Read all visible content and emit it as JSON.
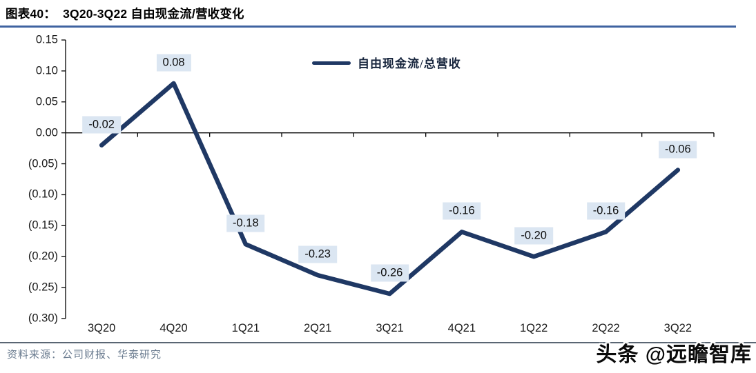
{
  "header": {
    "title": "图表40：  3Q20-3Q22 自由现金流/营收变化"
  },
  "legend": {
    "label": "自由现金流/总营收"
  },
  "chart_data": {
    "type": "line",
    "title": "3Q20-3Q22 自由现金流/营收变化",
    "categories": [
      "3Q20",
      "4Q20",
      "1Q21",
      "2Q21",
      "3Q21",
      "4Q21",
      "1Q22",
      "2Q22",
      "3Q22"
    ],
    "series": [
      {
        "name": "自由现金流/总营收",
        "values": [
          -0.02,
          0.08,
          -0.18,
          -0.23,
          -0.26,
          -0.16,
          -0.2,
          -0.16,
          -0.06
        ]
      }
    ],
    "data_labels": [
      "-0.02",
      "0.08",
      "-0.18",
      "-0.23",
      "-0.26",
      "-0.16",
      "-0.20",
      "-0.16",
      "-0.06"
    ],
    "y_tick_labels": [
      "0.15",
      "0.10",
      "0.05",
      "0.00",
      "(0.05)",
      "(0.10)",
      "(0.15)",
      "(0.20)",
      "(0.25)",
      "(0.30)"
    ],
    "y_tick_values": [
      0.15,
      0.1,
      0.05,
      0.0,
      -0.05,
      -0.1,
      -0.15,
      -0.2,
      -0.25,
      -0.3
    ],
    "ylim": [
      -0.3,
      0.15
    ],
    "xlabel": "",
    "ylabel": "",
    "grid": "zero-baseline-only",
    "legend_position": "top-center"
  },
  "colors": {
    "line": "#1f3864",
    "data_label_bg": "#dbe6f2",
    "axis": "#000000",
    "title_rule": "#3f63a0",
    "footer_rule": "#5a6673",
    "source_text": "#6b7c90"
  },
  "footer": {
    "source": "资料来源：公司财报、华泰研究",
    "watermark": "头条 @远瞻智库"
  }
}
